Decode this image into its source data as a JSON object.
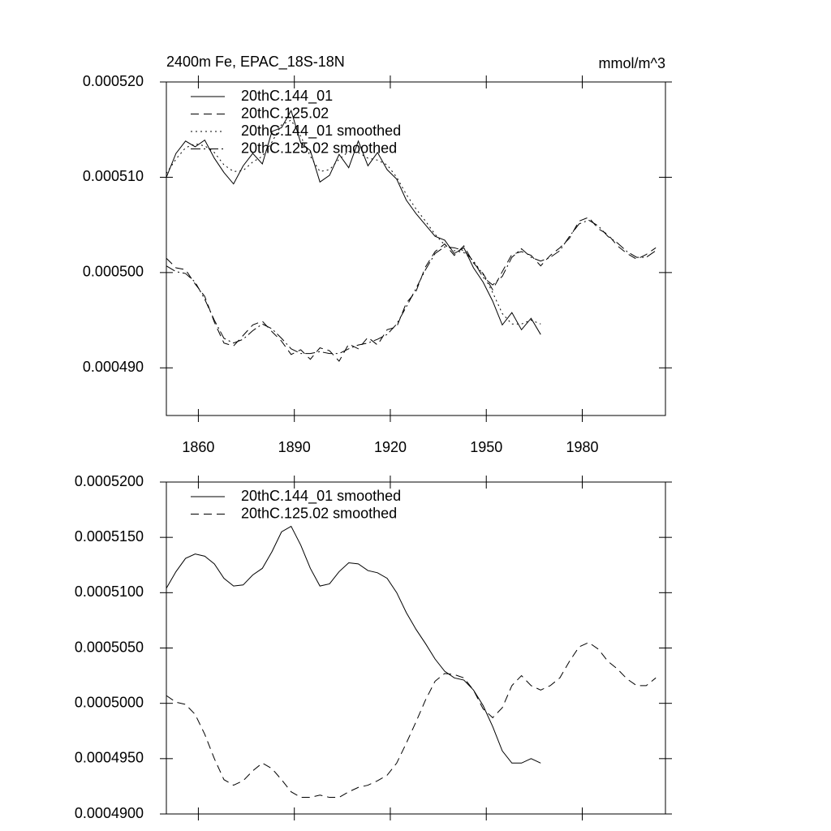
{
  "chart_data": [
    {
      "type": "line",
      "title": "2400m Fe, EPAC_18S-18N",
      "units": "mmol/m^3",
      "xlim": [
        1850,
        2006
      ],
      "xticks": [
        1860,
        1890,
        1920,
        1950,
        1980
      ],
      "show_xtick_labels": true,
      "ylim": [
        0.000485,
        0.00052
      ],
      "yticks": [
        {
          "value": 0.00049,
          "label": "0.000490"
        },
        {
          "value": 0.0005,
          "label": "0.000500"
        },
        {
          "value": 0.00051,
          "label": "0.000510"
        },
        {
          "value": 0.00052,
          "label": "0.000520"
        }
      ],
      "legend_position": "upper left",
      "series": [
        {
          "name": "20thC.144_01",
          "color": "#000000",
          "dash": "solid",
          "x": [
            1850,
            1853,
            1856,
            1859,
            1862,
            1865,
            1868,
            1871,
            1874,
            1877,
            1880,
            1883,
            1886,
            1889,
            1892,
            1895,
            1898,
            1901,
            1904,
            1907,
            1910,
            1913,
            1916,
            1919,
            1922,
            1925,
            1928,
            1931,
            1934,
            1937,
            1940,
            1943,
            1946,
            1949,
            1952,
            1955,
            1958,
            1961,
            1964,
            1967
          ],
          "values": [
            0.00051,
            0.0005125,
            0.0005138,
            0.0005132,
            0.0005139,
            0.000512,
            0.0005105,
            0.0005093,
            0.0005112,
            0.0005125,
            0.0005114,
            0.0005148,
            0.0005152,
            0.000517,
            0.0005136,
            0.0005128,
            0.0005095,
            0.0005102,
            0.0005124,
            0.000511,
            0.0005138,
            0.0005112,
            0.0005126,
            0.0005108,
            0.0005098,
            0.0005076,
            0.0005062,
            0.000505,
            0.0005038,
            0.0005034,
            0.000502,
            0.0005026,
            0.0005005,
            0.000499,
            0.000497,
            0.0004945,
            0.0004958,
            0.000494,
            0.0004952,
            0.0004935
          ]
        },
        {
          "name": "20thC.125.02",
          "color": "#000000",
          "dash": "dashed",
          "x": [
            1850,
            1853,
            1856,
            1859,
            1862,
            1865,
            1868,
            1871,
            1874,
            1877,
            1880,
            1883,
            1886,
            1889,
            1892,
            1895,
            1898,
            1901,
            1904,
            1907,
            1910,
            1913,
            1916,
            1919,
            1922,
            1925,
            1928,
            1931,
            1934,
            1937,
            1940,
            1943,
            1946,
            1949,
            1952,
            1955,
            1958,
            1961,
            1964,
            1967,
            1970,
            1973,
            1976,
            1979,
            1982,
            1985,
            1988,
            1991,
            1994,
            1997,
            2000,
            2003
          ],
          "values": [
            0.0005015,
            0.0005005,
            0.0005003,
            0.0004988,
            0.0004975,
            0.0004948,
            0.0004926,
            0.0004923,
            0.0004934,
            0.0004945,
            0.0004949,
            0.0004938,
            0.0004928,
            0.0004914,
            0.0004919,
            0.0004909,
            0.0004921,
            0.0004918,
            0.0004907,
            0.0004925,
            0.000492,
            0.0004932,
            0.0004924,
            0.000494,
            0.0004943,
            0.0004968,
            0.000498,
            0.0005006,
            0.0005022,
            0.000503,
            0.0005018,
            0.0005028,
            0.000501,
            0.0004999,
            0.0004982,
            0.0005001,
            0.0005019,
            0.0005022,
            0.0005018,
            0.0005007,
            0.0005018,
            0.0005026,
            0.0005036,
            0.0005054,
            0.0005058,
            0.0005046,
            0.000504,
            0.0005028,
            0.000502,
            0.0005014,
            0.0005019,
            0.0005026
          ]
        },
        {
          "name": "20thC.144_01 smoothed",
          "color": "#000000",
          "dash": "dotted",
          "x": [
            1850,
            1853,
            1856,
            1859,
            1862,
            1865,
            1868,
            1871,
            1874,
            1877,
            1880,
            1883,
            1886,
            1889,
            1892,
            1895,
            1898,
            1901,
            1904,
            1907,
            1910,
            1913,
            1916,
            1919,
            1922,
            1925,
            1928,
            1931,
            1934,
            1937,
            1940,
            1943,
            1946,
            1949,
            1952,
            1955,
            1958,
            1961,
            1964,
            1967
          ],
          "values": [
            0.0005104,
            0.0005119,
            0.0005131,
            0.0005135,
            0.0005133,
            0.0005126,
            0.0005113,
            0.0005106,
            0.0005107,
            0.0005116,
            0.0005122,
            0.0005137,
            0.0005155,
            0.000516,
            0.0005143,
            0.0005122,
            0.0005106,
            0.0005108,
            0.0005119,
            0.0005127,
            0.0005126,
            0.000512,
            0.0005118,
            0.0005113,
            0.00051,
            0.0005082,
            0.0005067,
            0.0005054,
            0.000504,
            0.0005029,
            0.0005023,
            0.0005021,
            0.0005012,
            0.0004998,
            0.0004979,
            0.0004957,
            0.0004946,
            0.0004946,
            0.000495,
            0.0004946
          ]
        },
        {
          "name": "20thC.125.02 smoothed",
          "color": "#000000",
          "dash": "dashdot",
          "x": [
            1850,
            1853,
            1856,
            1859,
            1862,
            1865,
            1868,
            1871,
            1874,
            1877,
            1880,
            1883,
            1886,
            1889,
            1892,
            1895,
            1898,
            1901,
            1904,
            1907,
            1910,
            1913,
            1916,
            1919,
            1922,
            1925,
            1928,
            1931,
            1934,
            1937,
            1940,
            1943,
            1946,
            1949,
            1952,
            1955,
            1958,
            1961,
            1964,
            1967,
            1970,
            1973,
            1976,
            1979,
            1982,
            1985,
            1988,
            1991,
            1994,
            1997,
            2000,
            2003
          ],
          "values": [
            0.0005007,
            0.0005001,
            0.0004999,
            0.000499,
            0.0004972,
            0.000495,
            0.0004931,
            0.0004926,
            0.000493,
            0.0004939,
            0.0004946,
            0.0004941,
            0.0004931,
            0.000492,
            0.0004915,
            0.0004915,
            0.0004917,
            0.0004915,
            0.0004915,
            0.000492,
            0.0004924,
            0.0004926,
            0.000493,
            0.0004935,
            0.0004946,
            0.0004964,
            0.0004983,
            0.0005003,
            0.000502,
            0.0005027,
            0.0005026,
            0.0005023,
            0.0005012,
            0.0004995,
            0.0004987,
            0.0004996,
            0.0005016,
            0.0005025,
            0.0005016,
            0.0005012,
            0.0005016,
            0.0005023,
            0.0005038,
            0.0005051,
            0.0005055,
            0.0005049,
            0.0005038,
            0.0005031,
            0.0005022,
            0.0005016,
            0.0005016,
            0.0005023
          ]
        }
      ]
    },
    {
      "type": "line",
      "xlim": [
        1850,
        2006
      ],
      "xticks": [
        1860,
        1890,
        1920,
        1950,
        1980
      ],
      "show_xtick_labels": false,
      "ylim": [
        0.00049,
        0.00052
      ],
      "yticks": [
        {
          "value": 0.00049,
          "label": "0.0004900"
        },
        {
          "value": 0.000495,
          "label": "0.0004950"
        },
        {
          "value": 0.0005,
          "label": "0.0005000"
        },
        {
          "value": 0.000505,
          "label": "0.0005050"
        },
        {
          "value": 0.00051,
          "label": "0.0005100"
        },
        {
          "value": 0.000515,
          "label": "0.0005150"
        },
        {
          "value": 0.00052,
          "label": "0.0005200"
        }
      ],
      "legend_position": "upper left",
      "series": [
        {
          "name": "20thC.144_01 smoothed",
          "color": "#000000",
          "dash": "solid",
          "x": [
            1850,
            1853,
            1856,
            1859,
            1862,
            1865,
            1868,
            1871,
            1874,
            1877,
            1880,
            1883,
            1886,
            1889,
            1892,
            1895,
            1898,
            1901,
            1904,
            1907,
            1910,
            1913,
            1916,
            1919,
            1922,
            1925,
            1928,
            1931,
            1934,
            1937,
            1940,
            1943,
            1946,
            1949,
            1952,
            1955,
            1958,
            1961,
            1964,
            1967
          ],
          "values": [
            0.0005104,
            0.0005119,
            0.0005131,
            0.0005135,
            0.0005133,
            0.0005126,
            0.0005113,
            0.0005106,
            0.0005107,
            0.0005116,
            0.0005122,
            0.0005137,
            0.0005155,
            0.000516,
            0.0005143,
            0.0005122,
            0.0005106,
            0.0005108,
            0.0005119,
            0.0005127,
            0.0005126,
            0.000512,
            0.0005118,
            0.0005113,
            0.00051,
            0.0005082,
            0.0005067,
            0.0005054,
            0.000504,
            0.0005029,
            0.0005023,
            0.0005021,
            0.0005012,
            0.0004998,
            0.0004979,
            0.0004957,
            0.0004946,
            0.0004946,
            0.000495,
            0.0004946
          ]
        },
        {
          "name": "20thC.125.02 smoothed",
          "color": "#000000",
          "dash": "dashed",
          "x": [
            1850,
            1853,
            1856,
            1859,
            1862,
            1865,
            1868,
            1871,
            1874,
            1877,
            1880,
            1883,
            1886,
            1889,
            1892,
            1895,
            1898,
            1901,
            1904,
            1907,
            1910,
            1913,
            1916,
            1919,
            1922,
            1925,
            1928,
            1931,
            1934,
            1937,
            1940,
            1943,
            1946,
            1949,
            1952,
            1955,
            1958,
            1961,
            1964,
            1967,
            1970,
            1973,
            1976,
            1979,
            1982,
            1985,
            1988,
            1991,
            1994,
            1997,
            2000,
            2003
          ],
          "values": [
            0.0005007,
            0.0005001,
            0.0004999,
            0.000499,
            0.0004972,
            0.000495,
            0.0004931,
            0.0004926,
            0.000493,
            0.0004939,
            0.0004946,
            0.0004941,
            0.0004931,
            0.000492,
            0.0004915,
            0.0004915,
            0.0004917,
            0.0004915,
            0.0004915,
            0.000492,
            0.0004924,
            0.0004926,
            0.000493,
            0.0004935,
            0.0004946,
            0.0004964,
            0.0004983,
            0.0005003,
            0.000502,
            0.0005027,
            0.0005026,
            0.0005023,
            0.0005012,
            0.0004995,
            0.0004987,
            0.0004996,
            0.0005016,
            0.0005025,
            0.0005016,
            0.0005012,
            0.0005016,
            0.0005023,
            0.0005038,
            0.0005051,
            0.0005055,
            0.0005049,
            0.0005038,
            0.0005031,
            0.0005022,
            0.0005016,
            0.0005016,
            0.0005023
          ]
        }
      ]
    }
  ]
}
